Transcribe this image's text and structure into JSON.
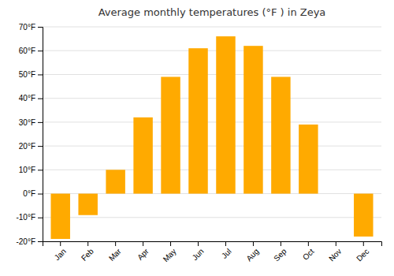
{
  "chart_data": {
    "type": "bar",
    "title": "Average monthly temperatures (°F ) in Zeya",
    "categories": [
      "Jan",
      "Feb",
      "Mar",
      "Apr",
      "May",
      "Jun",
      "Jul",
      "Aug",
      "Sep",
      "Oct",
      "Nov",
      "Dec"
    ],
    "values": [
      -19,
      -9,
      10,
      32,
      49,
      61,
      66,
      62,
      49,
      29,
      0,
      -18
    ],
    "color": "#FFAA00",
    "ylim": [
      -20,
      70
    ],
    "yticks": [
      {
        "value": -20,
        "label": "-20°F"
      },
      {
        "value": -10,
        "label": "-10°F"
      },
      {
        "value": 0,
        "label": "0°F"
      },
      {
        "value": 10,
        "label": "10°F"
      },
      {
        "value": 20,
        "label": "20°F"
      },
      {
        "value": 30,
        "label": "30°F"
      },
      {
        "value": 40,
        "label": "40°F"
      },
      {
        "value": 50,
        "label": "50°F"
      },
      {
        "value": 60,
        "label": "60°F"
      },
      {
        "value": 70,
        "label": "70°F"
      }
    ],
    "grid": true
  }
}
